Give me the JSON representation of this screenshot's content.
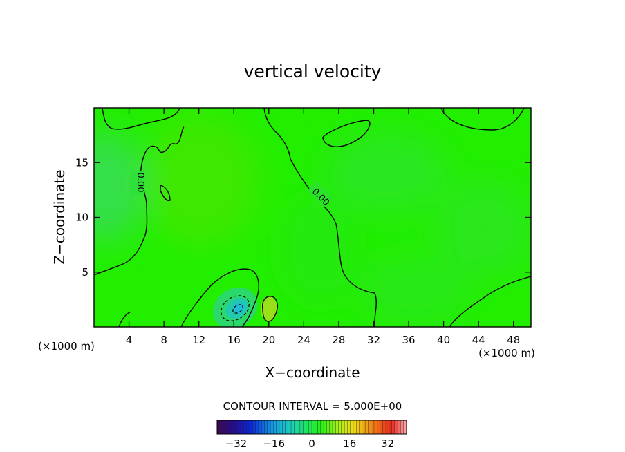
{
  "chart_data": {
    "type": "heatmap",
    "title": "vertical velocity",
    "xlabel": "X−coordinate",
    "ylabel": "Z−coordinate",
    "x_unit_left": "(×1000 m)",
    "x_unit_right": "(×1000 m)",
    "xlim": [
      0,
      50
    ],
    "ylim": [
      0,
      20
    ],
    "x_ticks": [
      4,
      8,
      12,
      16,
      20,
      24,
      28,
      32,
      36,
      40,
      44,
      48
    ],
    "y_ticks": [
      5,
      10,
      15
    ],
    "contour_interval_text": "CONTOUR INTERVAL = 5.000E+00",
    "contour_labels": [
      "0.00",
      "0.00"
    ],
    "colorbar": {
      "range": [
        -40,
        40
      ],
      "ticks": [
        -32,
        -16,
        0,
        16,
        32
      ],
      "tick_labels": [
        "−32",
        "−16",
        "0",
        "16",
        "32"
      ]
    },
    "features": [
      {
        "kind": "downdraft",
        "x": 16.7,
        "z": 1.8
      },
      {
        "kind": "updraft",
        "x": 20.0,
        "z": 1.8
      }
    ],
    "colors": {
      "field_base": "#22ee00",
      "field_tint": "#2fe23a",
      "contour": "#000000"
    }
  }
}
